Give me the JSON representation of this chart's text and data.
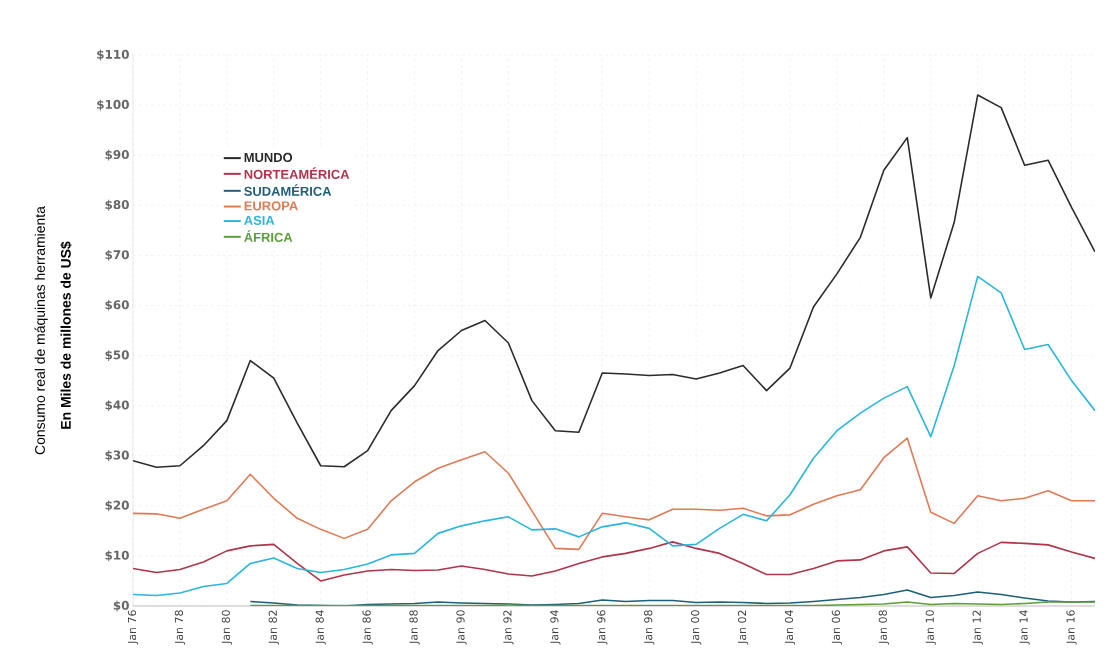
{
  "chart_data": {
    "type": "line",
    "ylabel": "Consumo real de máquinas herramienta",
    "annotations": [
      "En Miles de millones de US$"
    ],
    "x": [
      "1976-01",
      "1977-01",
      "1978-01",
      "1979-01",
      "1980-01",
      "1981-01",
      "1982-01",
      "1983-01",
      "1984-01",
      "1985-01",
      "1986-01",
      "1987-01",
      "1988-01",
      "1989-01",
      "1990-01",
      "1991-01",
      "1992-01",
      "1993-01",
      "1994-01",
      "1995-01",
      "1996-01",
      "1997-01",
      "1998-01",
      "1999-01",
      "2000-01",
      "2001-01",
      "2002-01",
      "2003-01",
      "2004-01",
      "2005-01",
      "2006-01",
      "2007-01",
      "2008-01",
      "2009-01",
      "2010-01",
      "2011-01",
      "2012-01",
      "2013-01",
      "2014-01",
      "2015-01",
      "2016-01",
      "2017-01"
    ],
    "series": [
      {
        "name": "MUNDO",
        "color": "#2b2b2b",
        "values": [
          29,
          27.7,
          28,
          32,
          37,
          49,
          45.5,
          36.5,
          28,
          27.8,
          31,
          39,
          44,
          51,
          55,
          57,
          52.5,
          41,
          35,
          34.7,
          46.5,
          46.3,
          46,
          46.2,
          45.3,
          46.5,
          48,
          43,
          47.5,
          59.7,
          66.3,
          73.6,
          87,
          93.5,
          61.5,
          76.6,
          102,
          99.5,
          88,
          89,
          79.6,
          70.7
        ]
      },
      {
        "name": "NORTEAMÉRICA",
        "color": "#b0344a",
        "values": [
          7.5,
          6.7,
          7.3,
          8.8,
          11,
          12,
          12.3,
          8.5,
          5,
          6.2,
          7,
          7.3,
          7.1,
          7.2,
          8,
          7.3,
          6.4,
          6,
          7,
          8.5,
          9.8,
          10.5,
          11.5,
          12.8,
          11.5,
          10.5,
          8.5,
          6.3,
          6.3,
          7.5,
          9,
          9.2,
          11,
          11.8,
          6.6,
          6.5,
          10.5,
          12.7,
          12.5,
          12.2,
          10.8,
          9.5
        ]
      },
      {
        "name": "SUDAMÉRICA",
        "color": "#1f5f7a",
        "values": [
          null,
          null,
          null,
          null,
          null,
          0.9,
          0.6,
          0.2,
          0.1,
          0,
          0.3,
          0.4,
          0.5,
          0.8,
          0.6,
          0.5,
          0.4,
          0.2,
          0.3,
          0.5,
          1.2,
          0.9,
          1.1,
          1.1,
          0.7,
          0.8,
          0.7,
          0.5,
          0.6,
          0.9,
          1.3,
          1.7,
          2.3,
          3.2,
          1.7,
          2.1,
          2.8,
          2.3,
          1.6,
          1,
          0.8,
          0.9
        ]
      },
      {
        "name": "EUROPA",
        "color": "#e07a55",
        "values": [
          18.5,
          18.4,
          17.5,
          19.3,
          21,
          26.3,
          21.5,
          17.5,
          15.3,
          13.5,
          15.3,
          21,
          24.8,
          27.5,
          29.2,
          30.8,
          26.5,
          19,
          11.5,
          11.3,
          18.5,
          17.8,
          17.2,
          19.3,
          19.3,
          19.1,
          19.5,
          18,
          18.2,
          20.3,
          22,
          23.2,
          29.6,
          33.5,
          18.7,
          16.5,
          22,
          21,
          21.5,
          23,
          21,
          21
        ]
      },
      {
        "name": "ASIA",
        "color": "#29b6e0",
        "values": [
          2.3,
          2.1,
          2.6,
          3.9,
          4.5,
          8.5,
          9.6,
          7.5,
          6.7,
          7.3,
          8.4,
          10.2,
          10.5,
          14.5,
          16,
          17,
          17.8,
          15.2,
          15.4,
          13.8,
          15.8,
          16.6,
          15.5,
          12,
          12.3,
          15.5,
          18.3,
          17,
          22.2,
          29.5,
          35,
          38.5,
          41.5,
          43.8,
          33.8,
          48,
          65.8,
          62.5,
          51.2,
          52.2,
          45,
          39
        ]
      },
      {
        "name": "ÁFRICA",
        "color": "#5a9e3c",
        "values": [
          null,
          null,
          null,
          null,
          null,
          0.1,
          0.1,
          0.1,
          0.1,
          0.1,
          0.1,
          0.1,
          0.1,
          0.1,
          0.1,
          0.1,
          0.2,
          0.1,
          0.1,
          0.1,
          0.1,
          0.1,
          0.1,
          0.1,
          0.1,
          0.1,
          0.1,
          0.1,
          0.1,
          0.1,
          0.2,
          0.3,
          0.4,
          0.8,
          0.3,
          0.5,
          0.4,
          0.3,
          0.5,
          0.8,
          0.8,
          0.8
        ]
      }
    ],
    "xlim": [
      "1976-01",
      "2017-01"
    ],
    "xticks": [
      {
        "value": "1976-01",
        "label": "Jan 76"
      },
      {
        "value": "1978-01",
        "label": "Jan 78"
      },
      {
        "value": "1980-01",
        "label": "Jan 80"
      },
      {
        "value": "1982-01",
        "label": "Jan 82"
      },
      {
        "value": "1984-01",
        "label": "Jan 84"
      },
      {
        "value": "1986-01",
        "label": "Jan 86"
      },
      {
        "value": "1988-01",
        "label": "Jan 88"
      },
      {
        "value": "1990-01",
        "label": "Jan 90"
      },
      {
        "value": "1992-01",
        "label": "Jan 92"
      },
      {
        "value": "1994-01",
        "label": "Jan 94"
      },
      {
        "value": "1996-01",
        "label": "Jan 96"
      },
      {
        "value": "1998-01",
        "label": "Jan 98"
      },
      {
        "value": "2000-01",
        "label": "Jan 00"
      },
      {
        "value": "2002-01",
        "label": "Jan 02"
      },
      {
        "value": "2004-01",
        "label": "Jan 04"
      },
      {
        "value": "2006-01",
        "label": "Jan 06"
      },
      {
        "value": "2008-01",
        "label": "Jan 08"
      },
      {
        "value": "2010-01",
        "label": "Jan 10"
      },
      {
        "value": "2012-01",
        "label": "Jan 12"
      },
      {
        "value": "2014-01",
        "label": "Jan 14"
      },
      {
        "value": "2016-01",
        "label": "Jan 16"
      }
    ],
    "ylim": [
      0,
      110
    ],
    "yticks": [
      {
        "value": 0,
        "label": "$0"
      },
      {
        "value": 10,
        "label": "$10"
      },
      {
        "value": 20,
        "label": "$20"
      },
      {
        "value": 30,
        "label": "$30"
      },
      {
        "value": 40,
        "label": "$40"
      },
      {
        "value": 50,
        "label": "$50"
      },
      {
        "value": 60,
        "label": "$60"
      },
      {
        "value": 70,
        "label": "$70"
      },
      {
        "value": 80,
        "label": "$80"
      },
      {
        "value": 90,
        "label": "$90"
      },
      {
        "value": 100,
        "label": "$100"
      },
      {
        "value": 110,
        "label": "$110"
      }
    ],
    "grid": true,
    "legend": "top left",
    "marker": "none",
    "line_style": "solid"
  }
}
